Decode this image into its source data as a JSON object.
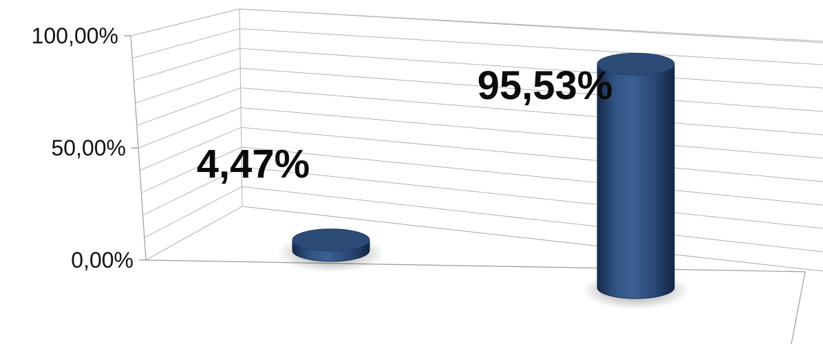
{
  "chart_data": {
    "type": "bar",
    "categories": [
      "",
      ""
    ],
    "series": [
      {
        "values": [
          4.47,
          95.53
        ]
      }
    ],
    "data_labels": [
      "4,47%",
      "95,53%"
    ],
    "y_ticks": [
      {
        "value": 0,
        "label": "0,00%"
      },
      {
        "value": 50,
        "label": "50,00%"
      },
      {
        "value": 100,
        "label": "100,00%"
      }
    ],
    "ylim": [
      0,
      100
    ],
    "grid": true,
    "style": "3d-cylinder",
    "bar_color": "#2b4a74"
  }
}
